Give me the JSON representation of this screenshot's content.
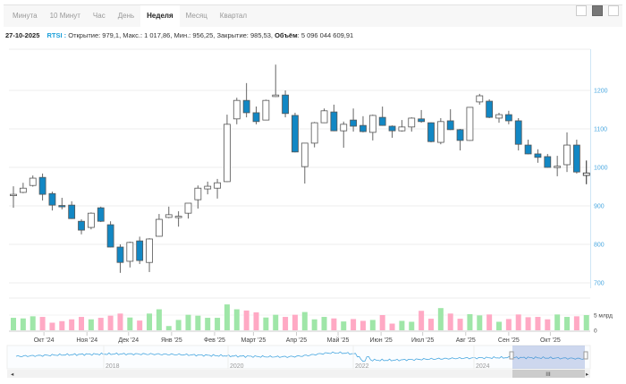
{
  "tabs": [
    {
      "label": "Минута",
      "active": false
    },
    {
      "label": "10 Минут",
      "active": false
    },
    {
      "label": "Час",
      "active": false
    },
    {
      "label": "День",
      "active": false
    },
    {
      "label": "Неделя",
      "active": true
    },
    {
      "label": "Месяц",
      "active": false
    },
    {
      "label": "Квартал",
      "active": false
    }
  ],
  "chart_types": [
    "line-chart-icon",
    "candlestick-chart-icon",
    "ohlc-chart-icon"
  ],
  "info": {
    "date": "27-10-2025",
    "ticker": "RTSI :",
    "open": "Открытие: 979,1,",
    "high": "Макс.: 1 017,86,",
    "low": "Мин.: 956,25,",
    "close": "Закрытие: 985,53,",
    "volume_label": "Объём",
    "volume_value": ": 5 096 044 609,91"
  },
  "colors": {
    "down": "#1287c4",
    "up": "#ffffff",
    "vol_up": "#9fe6a8",
    "vol_down": "#ffa9c4",
    "axis": "#4aa8e0"
  },
  "chart_data": {
    "type": "candlestick",
    "title": "RTSI",
    "interval": "week",
    "first_date": "2024-09-09",
    "ylim": [
      700,
      1290
    ],
    "yticks": [
      700,
      800,
      900,
      1000,
      1100,
      1200
    ],
    "volume_ticks": [
      {
        "value": 0,
        "label": "0"
      },
      {
        "value": 5,
        "label": "5 млрд"
      }
    ],
    "volume_unit": "bn",
    "month_labels": [
      {
        "date": "2024-10-01",
        "label": "Окт '24"
      },
      {
        "date": "2024-11-01",
        "label": "Ноя '24"
      },
      {
        "date": "2024-12-01",
        "label": "Дек '24"
      },
      {
        "date": "2025-01-01",
        "label": "Янв '25"
      },
      {
        "date": "2025-02-01",
        "label": "Фев '25"
      },
      {
        "date": "2025-03-01",
        "label": "Март '25"
      },
      {
        "date": "2025-04-01",
        "label": "Апр '25"
      },
      {
        "date": "2025-05-01",
        "label": "Май '25"
      },
      {
        "date": "2025-06-01",
        "label": "Июн '25"
      },
      {
        "date": "2025-07-01",
        "label": "Июл '25"
      },
      {
        "date": "2025-08-01",
        "label": "Авг '25"
      },
      {
        "date": "2025-09-01",
        "label": "Сен '25"
      },
      {
        "date": "2025-10-01",
        "label": "Окт '25"
      }
    ],
    "ohlc": [
      [
        928,
        951,
        895,
        930
      ],
      [
        935,
        960,
        933,
        946
      ],
      [
        953,
        979,
        950,
        972
      ],
      [
        974,
        984,
        914,
        930
      ],
      [
        932,
        937,
        888,
        902
      ],
      [
        901,
        921,
        891,
        899
      ],
      [
        902,
        912,
        866,
        867
      ],
      [
        860,
        865,
        826,
        837
      ],
      [
        844,
        883,
        839,
        881
      ],
      [
        895,
        898,
        858,
        860
      ],
      [
        851,
        860,
        792,
        793
      ],
      [
        793,
        800,
        726,
        753
      ],
      [
        756,
        807,
        740,
        805
      ],
      [
        809,
        820,
        749,
        758
      ],
      [
        753,
        816,
        728,
        814
      ],
      [
        821,
        879,
        820,
        865
      ],
      [
        870,
        898,
        868,
        877
      ],
      [
        871,
        886,
        846,
        873
      ],
      [
        881,
        907,
        867,
        907
      ],
      [
        916,
        953,
        893,
        946
      ],
      [
        944,
        963,
        930,
        951
      ],
      [
        946,
        970,
        919,
        960
      ],
      [
        963,
        1137,
        962,
        1112
      ],
      [
        1126,
        1181,
        1112,
        1174
      ],
      [
        1174,
        1219,
        1130,
        1142
      ],
      [
        1142,
        1158,
        1112,
        1119
      ],
      [
        1123,
        1176,
        1122,
        1174
      ],
      [
        1184,
        1267,
        1183,
        1188
      ],
      [
        1188,
        1200,
        1130,
        1140
      ],
      [
        1135,
        1142,
        1039,
        1040
      ],
      [
        1002,
        1064,
        958,
        1063
      ],
      [
        1063,
        1118,
        1052,
        1116
      ],
      [
        1116,
        1153,
        1115,
        1147
      ],
      [
        1144,
        1163,
        1094,
        1095
      ],
      [
        1095,
        1119,
        1051,
        1112
      ],
      [
        1123,
        1153,
        1093,
        1107
      ],
      [
        1109,
        1133,
        1091,
        1093
      ],
      [
        1091,
        1137,
        1070,
        1135
      ],
      [
        1130,
        1158,
        1108,
        1109
      ],
      [
        1107,
        1109,
        1077,
        1095
      ],
      [
        1095,
        1123,
        1093,
        1105
      ],
      [
        1105,
        1130,
        1093,
        1128
      ],
      [
        1126,
        1149,
        1116,
        1119
      ],
      [
        1116,
        1117,
        1065,
        1067
      ],
      [
        1065,
        1128,
        1060,
        1119
      ],
      [
        1121,
        1151,
        1097,
        1098
      ],
      [
        1098,
        1100,
        1044,
        1070
      ],
      [
        1070,
        1156,
        1069,
        1156
      ],
      [
        1170,
        1191,
        1163,
        1186
      ],
      [
        1172,
        1177,
        1128,
        1130
      ],
      [
        1128,
        1142,
        1116,
        1137
      ],
      [
        1137,
        1147,
        1112,
        1121
      ],
      [
        1121,
        1128,
        1044,
        1060
      ],
      [
        1058,
        1072,
        1034,
        1035
      ],
      [
        1035,
        1047,
        1012,
        1026
      ],
      [
        1028,
        1035,
        999,
        1000
      ],
      [
        1001,
        1030,
        977,
        1003
      ],
      [
        1007,
        1091,
        988,
        1058
      ],
      [
        1058,
        1072,
        984,
        988
      ],
      [
        979.1,
        1017.86,
        956.25,
        985.53
      ]
    ],
    "volume": [
      4.1,
      3.9,
      4.6,
      4.4,
      2.5,
      3.0,
      3.6,
      4.4,
      3.6,
      4.1,
      4.8,
      5.5,
      4.2,
      3.2,
      5.5,
      6.9,
      1.4,
      3.4,
      5.1,
      4.8,
      4.1,
      4.1,
      8.5,
      6.9,
      6.5,
      5.9,
      4.2,
      5.1,
      4.4,
      5.1,
      6.0,
      3.6,
      4.4,
      3.9,
      2.9,
      3.7,
      3.1,
      3.4,
      5.0,
      2.2,
      3.1,
      2.8,
      6.4,
      3.8,
      7.3,
      5.5,
      3.8,
      5.3,
      4.9,
      5.2,
      2.8,
      3.7,
      5.2,
      4.3,
      4.4,
      3.6,
      5.2,
      4.4,
      4.6,
      5.0
    ]
  },
  "navigator": {
    "years": [
      "2018",
      "2020",
      "2022",
      "2024"
    ],
    "scroll_handle": "III"
  }
}
